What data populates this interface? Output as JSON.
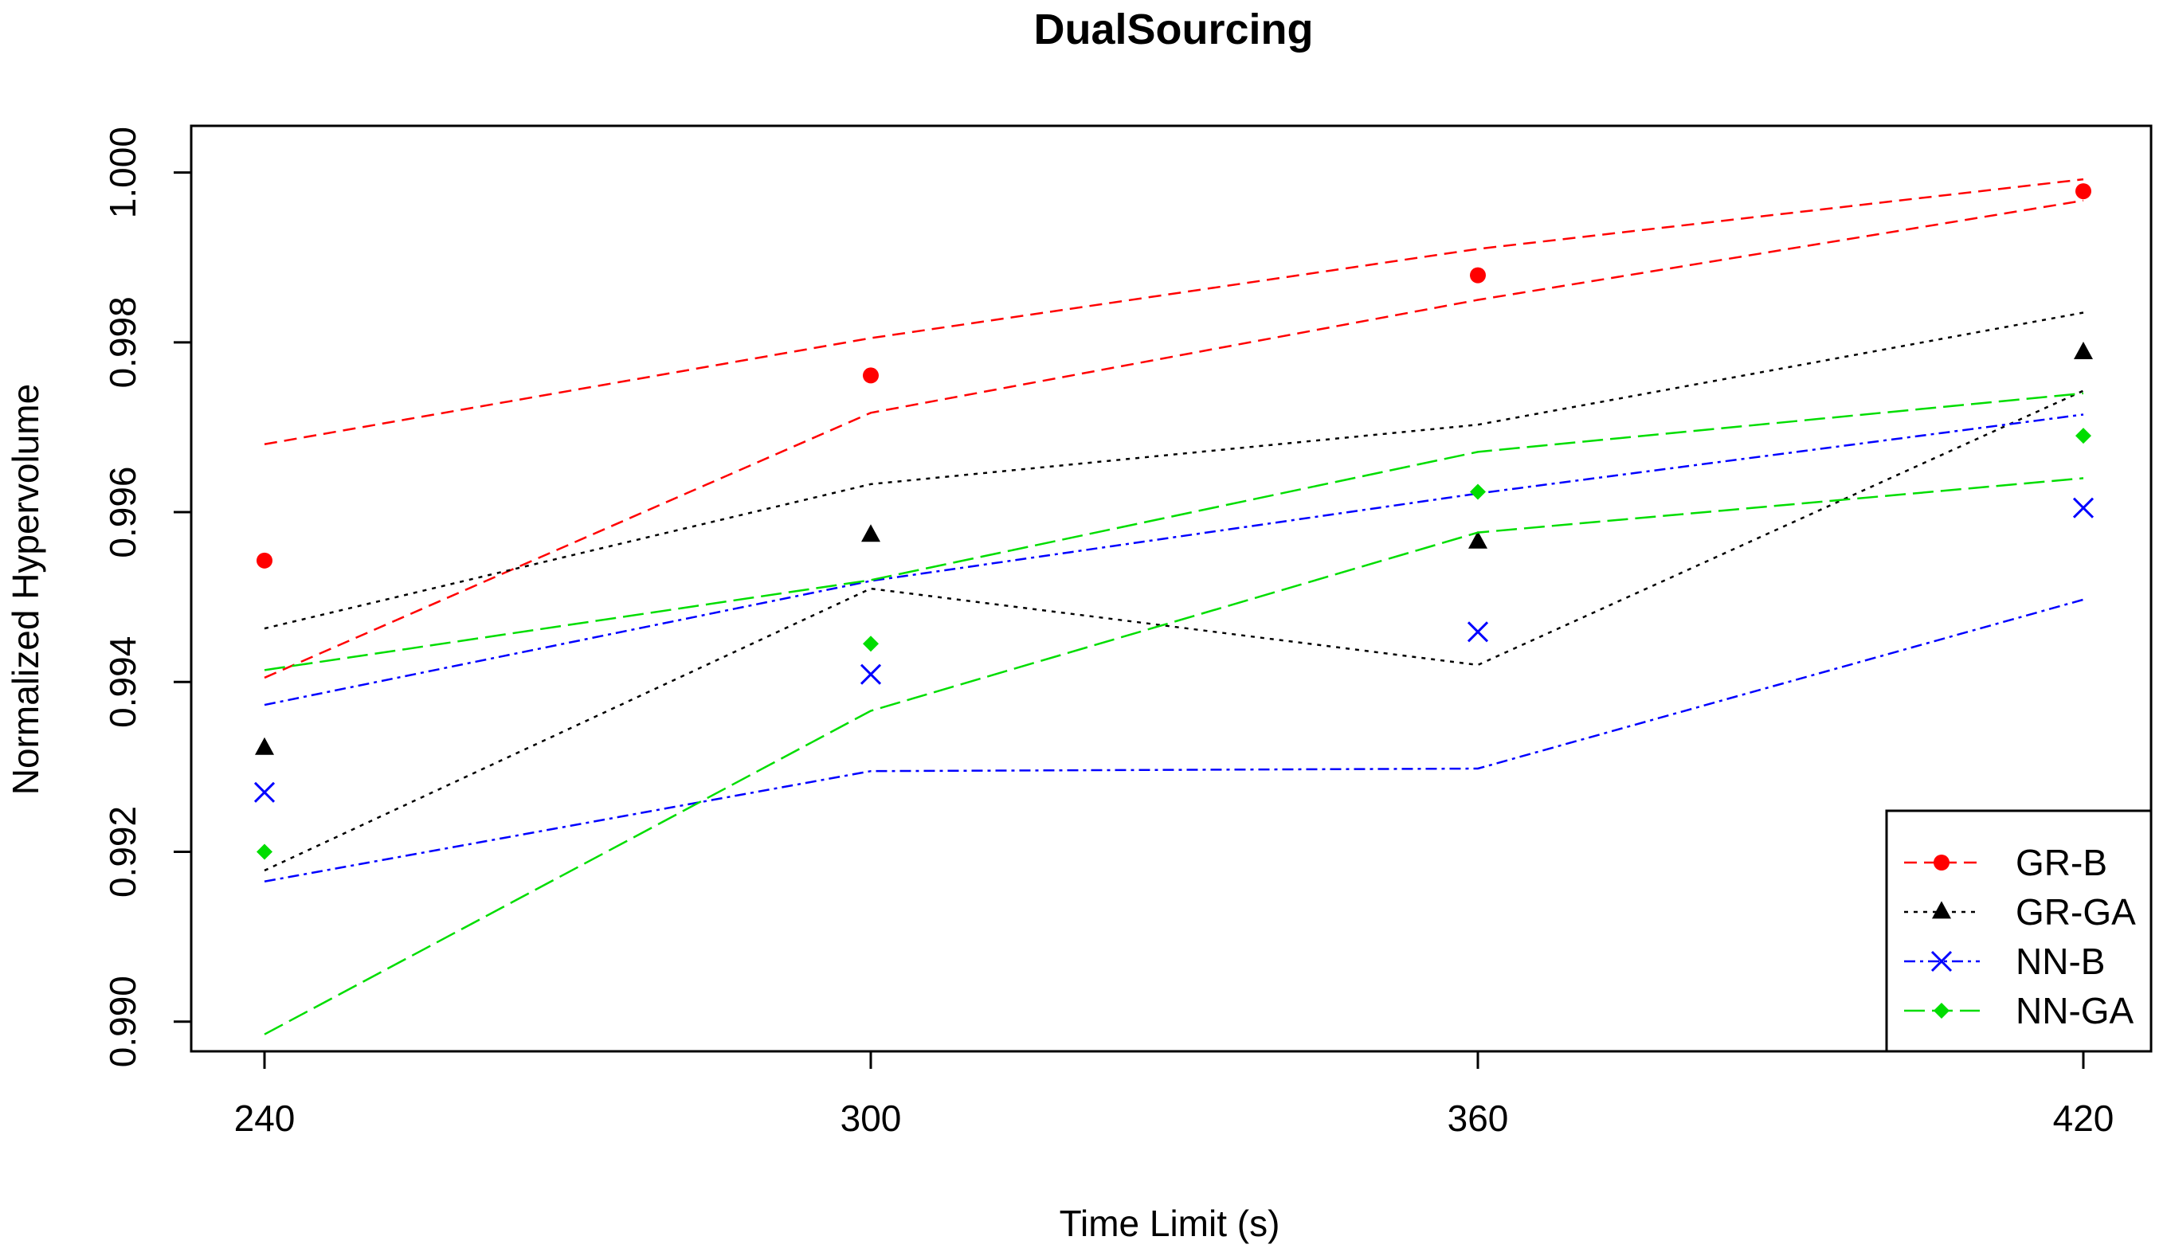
{
  "chart_data": {
    "type": "line",
    "title": "DualSourcing",
    "xlabel": "Time Limit (s)",
    "ylabel": "Normalized Hypervolume",
    "categories": [
      "240",
      "300",
      "360",
      "420"
    ],
    "x": [
      240,
      300,
      360,
      420
    ],
    "yticks": [
      "0.990",
      "0.992",
      "0.994",
      "0.996",
      "0.998",
      "1.000"
    ],
    "ylim": [
      0.98965,
      1.00055
    ],
    "grid": false,
    "legend_position": "bottom-right",
    "series": [
      {
        "name": "GR-B",
        "color": "#ff0000",
        "marker": "circle",
        "values": [
          0.99543,
          0.99761,
          0.99879,
          0.99978
        ],
        "upper": [
          0.9968,
          0.99805,
          0.9991,
          0.99992
        ],
        "lower": [
          0.99405,
          0.99717,
          0.9985,
          0.99967
        ]
      },
      {
        "name": "GR-GA",
        "color": "#000000",
        "marker": "triangle",
        "values": [
          0.99322,
          0.99573,
          0.99565,
          0.99788
        ],
        "upper": [
          0.99463,
          0.99633,
          0.99703,
          0.99835
        ],
        "lower": [
          0.99178,
          0.9951,
          0.9942,
          0.99743
        ]
      },
      {
        "name": "NN-B",
        "color": "#0000ff",
        "marker": "cross",
        "values": [
          0.9927,
          0.99409,
          0.99459,
          0.99605
        ],
        "upper": [
          0.99373,
          0.99519,
          0.99622,
          0.99715
        ],
        "lower": [
          0.99165,
          0.99295,
          0.99298,
          0.99497
        ]
      },
      {
        "name": "NN-GA",
        "color": "#00dd00",
        "marker": "diamond",
        "values": [
          0.992,
          0.99445,
          0.99624,
          0.9969
        ],
        "upper": [
          0.99414,
          0.9952,
          0.99671,
          0.9974
        ],
        "lower": [
          0.98985,
          0.99366,
          0.99576,
          0.9964
        ]
      }
    ]
  }
}
